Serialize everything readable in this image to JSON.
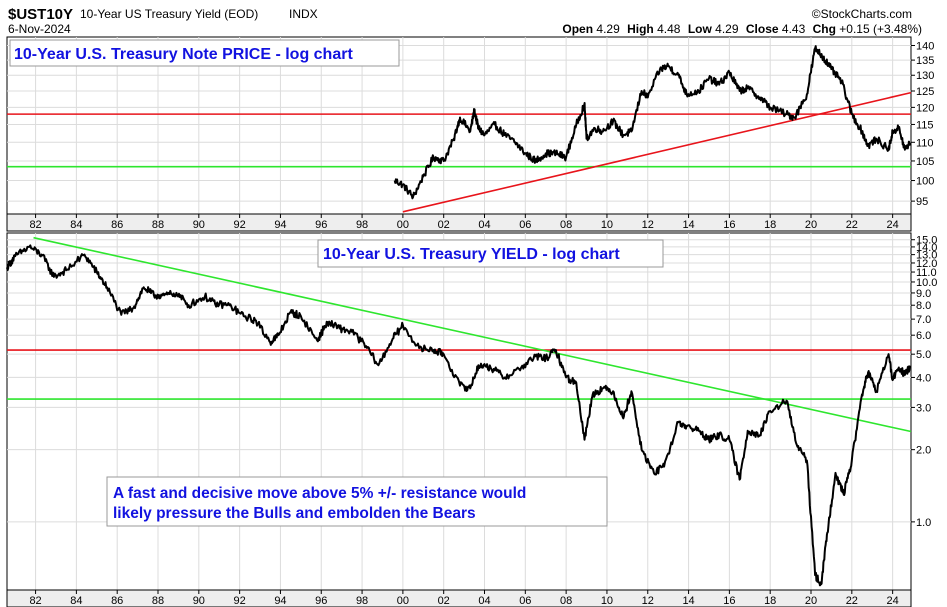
{
  "header": {
    "symbol": "$UST10Y",
    "description": "10-Year US Treasury Yield (EOD)",
    "exchange": "INDX",
    "date": "6-Nov-2024",
    "brand": "©StockCharts.com",
    "open_label": "Open",
    "open_value": "4.29",
    "high_label": "High",
    "high_value": "4.48",
    "low_label": "Low",
    "low_value": "4.29",
    "close_label": "Close",
    "close_value": "4.43",
    "chg_label": "Chg",
    "chg_value": "+0.15 (+3.48%)"
  },
  "colors": {
    "red_line": "#e8141b",
    "green_line": "#2ee62e",
    "text_blue": "#1212e0",
    "price": "#000000"
  },
  "chart_data": [
    {
      "type": "line",
      "title": "10-Year U.S. Treasury Note PRICE - log chart",
      "y_scale": "log",
      "x_ticks": [
        "82",
        "84",
        "86",
        "88",
        "90",
        "92",
        "94",
        "96",
        "98",
        "00",
        "02",
        "04",
        "06",
        "08",
        "10",
        "12",
        "14",
        "16",
        "18",
        "20",
        "22",
        "24"
      ],
      "y_ticks": [
        "140",
        "135",
        "130",
        "125",
        "120",
        "115",
        "110",
        "105",
        "100",
        "95"
      ],
      "xlim": [
        1980.6,
        2024.9
      ],
      "ylim": [
        92,
        143
      ],
      "series": [
        {
          "x": [
            1999.6,
            2000.0,
            2000.5,
            2001.0,
            2001.5,
            2002.0,
            2002.5,
            2002.8,
            2003.3,
            2003.5,
            2003.7,
            2004.0,
            2004.5,
            2005.0,
            2005.5,
            2006.0,
            2006.5,
            2007.0,
            2007.5,
            2008.0,
            2008.5,
            2008.9,
            2009.0,
            2009.4,
            2009.8,
            2010.3,
            2010.8,
            2011.2,
            2011.7,
            2012.0,
            2012.6,
            2013.0,
            2013.5,
            2013.9,
            2014.5,
            2015.0,
            2015.5,
            2016.0,
            2016.5,
            2016.9,
            2017.5,
            2018.0,
            2018.8,
            2019.2,
            2019.8,
            2020.2,
            2020.6,
            2021.0,
            2021.5,
            2022.0,
            2022.5,
            2022.8,
            2023.2,
            2023.8,
            2024.0,
            2024.3,
            2024.6,
            2024.85
          ],
          "values": [
            100,
            99,
            96,
            101,
            106,
            105,
            111,
            117,
            113,
            119,
            114,
            112,
            115,
            112,
            110,
            107,
            105,
            107,
            107,
            106,
            115,
            121,
            111,
            114,
            113,
            116,
            112,
            113,
            125,
            123,
            132,
            133,
            130,
            124,
            125,
            129,
            127,
            131,
            125,
            126,
            123,
            120,
            118,
            117,
            124,
            139,
            136,
            132,
            128,
            118,
            113,
            109,
            111,
            108,
            113,
            114,
            108,
            110
          ]
        }
      ],
      "lines": [
        {
          "kind": "horizontal",
          "color": "red",
          "value": 118
        },
        {
          "kind": "horizontal",
          "color": "green",
          "value": 103.5
        },
        {
          "kind": "trend",
          "color": "red",
          "x": [
            2000.0,
            2024.9
          ],
          "y": [
            92.5,
            124.5
          ]
        }
      ]
    },
    {
      "type": "line",
      "title": "10-Year U.S. Treasury YIELD - log chart",
      "y_scale": "log",
      "x_ticks": [
        "82",
        "84",
        "86",
        "88",
        "90",
        "92",
        "94",
        "96",
        "98",
        "00",
        "02",
        "04",
        "06",
        "08",
        "10",
        "12",
        "14",
        "16",
        "18",
        "20",
        "22",
        "24"
      ],
      "y_ticks": [
        "15.0",
        "14.0",
        "13.0",
        "12.0",
        "11.0",
        "10.0",
        "9.0",
        "8.0",
        "7.0",
        "6.0",
        "5.0",
        "4.0",
        "3.0",
        "2.0",
        "1.0"
      ],
      "xlim": [
        1980.6,
        2024.9
      ],
      "ylim": [
        0.52,
        16.0
      ],
      "annotation": "A fast and decisive move above 5% +/- resistance would likely pressure the Bulls and embolden the Bears",
      "series": [
        {
          "x": [
            1980.6,
            1981.0,
            1981.7,
            1982.3,
            1982.9,
            1983.5,
            1984.4,
            1985.0,
            1985.5,
            1986.2,
            1986.8,
            1987.3,
            1987.8,
            1988.3,
            1988.9,
            1989.5,
            1990.3,
            1990.8,
            1991.5,
            1992.2,
            1992.8,
            1993.5,
            1993.9,
            1994.5,
            1995.0,
            1995.8,
            1996.3,
            1996.9,
            1997.5,
            1998.2,
            1998.8,
            1999.5,
            2000.0,
            2000.8,
            2001.5,
            2002.0,
            2002.8,
            2003.3,
            2003.7,
            2004.3,
            2005.0,
            2005.8,
            2006.5,
            2007.0,
            2007.5,
            2008.0,
            2008.5,
            2008.9,
            2009.3,
            2009.8,
            2010.3,
            2010.8,
            2011.2,
            2011.7,
            2012.3,
            2012.8,
            2013.5,
            2013.9,
            2014.5,
            2015.0,
            2015.5,
            2016.0,
            2016.5,
            2016.9,
            2017.5,
            2018.0,
            2018.8,
            2019.3,
            2019.8,
            2020.2,
            2020.5,
            2020.8,
            2021.2,
            2021.6,
            2022.0,
            2022.5,
            2022.8,
            2023.2,
            2023.8,
            2024.0,
            2024.3,
            2024.6,
            2024.85
          ],
          "values": [
            11.5,
            12.8,
            14.0,
            13.0,
            10.5,
            11.2,
            13.0,
            11.0,
            9.5,
            7.3,
            7.8,
            9.5,
            8.8,
            8.8,
            9.0,
            8.0,
            8.7,
            8.1,
            8.0,
            7.2,
            6.9,
            5.6,
            6.0,
            7.5,
            7.2,
            5.7,
            6.8,
            6.4,
            6.2,
            5.4,
            4.5,
            5.8,
            6.6,
            5.3,
            5.2,
            5.0,
            3.7,
            3.6,
            4.5,
            4.4,
            4.0,
            4.4,
            4.9,
            4.8,
            5.2,
            4.0,
            3.8,
            2.2,
            3.4,
            3.6,
            3.5,
            2.7,
            3.5,
            2.0,
            1.6,
            1.7,
            2.6,
            2.5,
            2.4,
            2.2,
            2.3,
            2.2,
            1.5,
            2.4,
            2.3,
            2.9,
            3.2,
            2.1,
            1.8,
            0.6,
            0.55,
            0.9,
            1.6,
            1.3,
            1.8,
            3.4,
            4.2,
            3.5,
            5.0,
            3.9,
            4.4,
            4.1,
            4.4
          ]
        }
      ],
      "lines": [
        {
          "kind": "horizontal",
          "color": "red",
          "value": 5.2
        },
        {
          "kind": "horizontal",
          "color": "green",
          "value": 3.25
        },
        {
          "kind": "trend",
          "color": "green",
          "x": [
            1981.9,
            2024.9
          ],
          "y": [
            15.3,
            2.38
          ]
        }
      ]
    }
  ]
}
